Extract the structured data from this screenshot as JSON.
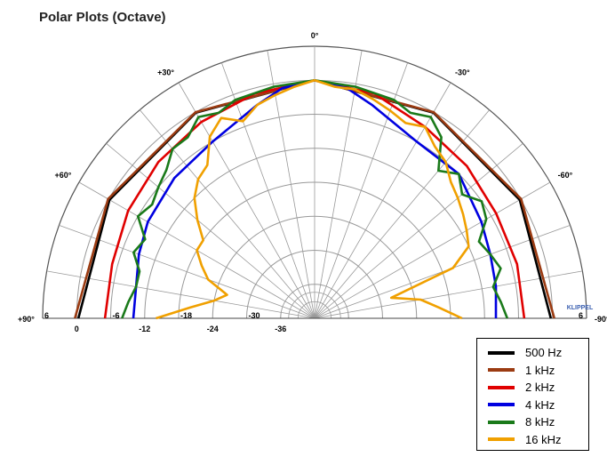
{
  "title": "Polar Plots (Octave)",
  "watermark": "KLIPPEL",
  "colors": {
    "grid": "#666666",
    "grid_light": "#999999",
    "background": "#ffffff"
  },
  "chart_data": {
    "type": "polar",
    "angle_unit": "deg",
    "angle_range": [
      -90,
      90
    ],
    "radial_unit": "dB",
    "radial_range": [
      -42,
      6
    ],
    "radial_rings_db": [
      6,
      0,
      -6,
      -12,
      -18,
      -24,
      -30,
      -36
    ],
    "spoke_step_deg": 10,
    "angle_labels": [
      {
        "angle": 0,
        "text": "0°"
      },
      {
        "angle": 30,
        "text": "+30°"
      },
      {
        "angle": -30,
        "text": "-30°"
      },
      {
        "angle": 60,
        "text": "+60°"
      },
      {
        "angle": -60,
        "text": "-60°"
      },
      {
        "angle": 90,
        "text": "+90°"
      },
      {
        "angle": -90,
        "text": "-90°"
      }
    ],
    "radial_labels": [
      "6",
      "0",
      "-6",
      "-12",
      "-18",
      "-24",
      "-30",
      "-36"
    ],
    "right_radial_labels": [
      "6"
    ],
    "legend_position": "bottom-right",
    "series": [
      {
        "name": "500 Hz",
        "color": "#000000",
        "angles": [
          -90,
          -60,
          -30,
          0,
          30,
          60,
          90
        ],
        "db": [
          -0.3,
          -0.2,
          -0.1,
          0.0,
          -0.1,
          -0.2,
          -0.3
        ]
      },
      {
        "name": "1 kHz",
        "color": "#9b3b12",
        "angles": [
          -90,
          -60,
          -30,
          0,
          30,
          60,
          90
        ],
        "db": [
          0.3,
          0.1,
          0.0,
          0.0,
          0.0,
          0.1,
          0.3
        ]
      },
      {
        "name": "2 kHz",
        "color": "#e00000",
        "angles": [
          -90,
          -75,
          -60,
          -45,
          -30,
          -15,
          0,
          15,
          30,
          45,
          60,
          75,
          90
        ],
        "db": [
          -5,
          -5,
          -5,
          -4,
          -3,
          -1,
          0,
          -1,
          -2,
          -3,
          -4,
          -5,
          -5
        ]
      },
      {
        "name": "4 kHz",
        "color": "#0000e0",
        "angles": [
          -90,
          -80,
          -70,
          -60,
          -45,
          -30,
          -15,
          -8,
          0,
          8,
          15,
          30,
          45,
          60,
          70,
          80,
          90
        ],
        "db": [
          -10,
          -9.5,
          -9,
          -8,
          -6,
          -6,
          -3,
          -1,
          0,
          -1,
          -3,
          -6,
          -7,
          -8,
          -9,
          -10,
          -10
        ]
      },
      {
        "name": "8 kHz",
        "color": "#1a7a1a",
        "angles": [
          -90,
          -85,
          -80,
          -75,
          -70,
          -65,
          -60,
          -55,
          -50,
          -45,
          -40,
          -35,
          -30,
          -25,
          -20,
          -10,
          0,
          10,
          20,
          25,
          30,
          35,
          40,
          45,
          50,
          55,
          60,
          65,
          70,
          75,
          80,
          85,
          90
        ],
        "db": [
          -8,
          -9,
          -10,
          -8,
          -9,
          -10,
          -7,
          -6,
          -8,
          -6,
          -8,
          -3,
          -1,
          -2,
          -1,
          -0.5,
          0,
          -0.5,
          -1,
          -2,
          -1,
          -3,
          -3,
          -5,
          -6,
          -7,
          -6,
          -9,
          -8,
          -10,
          -10,
          -9,
          -8
        ]
      },
      {
        "name": "16 kHz",
        "color": "#f0a000",
        "angles": [
          -90,
          -85,
          -80,
          -75,
          -70,
          -65,
          -60,
          -55,
          -50,
          -45,
          -40,
          -35,
          -30,
          -25,
          -20,
          -15,
          -10,
          -5,
          0,
          5,
          10,
          15,
          20,
          25,
          30,
          35,
          40,
          45,
          50,
          55,
          60,
          65,
          70,
          75,
          80,
          85,
          90
        ],
        "db": [
          -16,
          -20,
          -23,
          -28,
          -16,
          -12,
          -11,
          -10,
          -9,
          -8,
          -6,
          -5,
          -3,
          -4,
          -3,
          -2,
          -1,
          -1,
          0,
          -1,
          -2,
          -3,
          -5,
          -3,
          -5,
          -9,
          -10,
          -12,
          -15,
          -18,
          -18,
          -20,
          -22,
          -26,
          -24,
          -20,
          -14
        ]
      }
    ]
  }
}
